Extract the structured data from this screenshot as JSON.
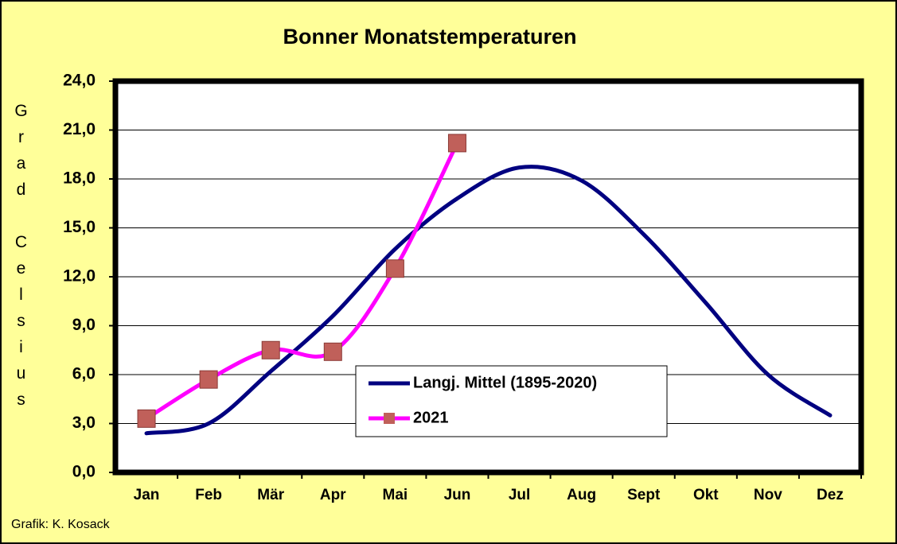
{
  "chart_data": {
    "type": "line",
    "title": "Bonner Monatstemperaturen",
    "y_label": "Grad Celsius",
    "footer": "Grafik:  K. Kosack",
    "categories": [
      "Jan",
      "Feb",
      "Mär",
      "Apr",
      "Mai",
      "Jun",
      "Jul",
      "Aug",
      "Sept",
      "Okt",
      "Nov",
      "Dez"
    ],
    "series": [
      {
        "name": "Langj. Mittel (1895-2020)",
        "color": "#000080",
        "marker": false,
        "values": [
          2.4,
          3.0,
          6.2,
          9.6,
          13.7,
          16.8,
          18.7,
          17.9,
          14.6,
          10.4,
          6.0,
          3.5
        ]
      },
      {
        "name": "2021",
        "color": "#ff00ff",
        "marker": true,
        "marker_color": "#c0605a",
        "values": [
          3.3,
          5.7,
          7.5,
          7.4,
          12.5,
          20.2,
          null,
          null,
          null,
          null,
          null,
          null
        ]
      }
    ],
    "ylim": [
      0,
      24
    ],
    "yticks": [
      {
        "value": 0,
        "label": "0,0"
      },
      {
        "value": 3,
        "label": "3,0"
      },
      {
        "value": 6,
        "label": "6,0"
      },
      {
        "value": 9,
        "label": "9,0"
      },
      {
        "value": 12,
        "label": "12,0"
      },
      {
        "value": 15,
        "label": "15,0"
      },
      {
        "value": 18,
        "label": "18,0"
      },
      {
        "value": 21,
        "label": "21,0"
      },
      {
        "value": 24,
        "label": "24,0"
      }
    ],
    "grid": true,
    "smooth": true
  }
}
